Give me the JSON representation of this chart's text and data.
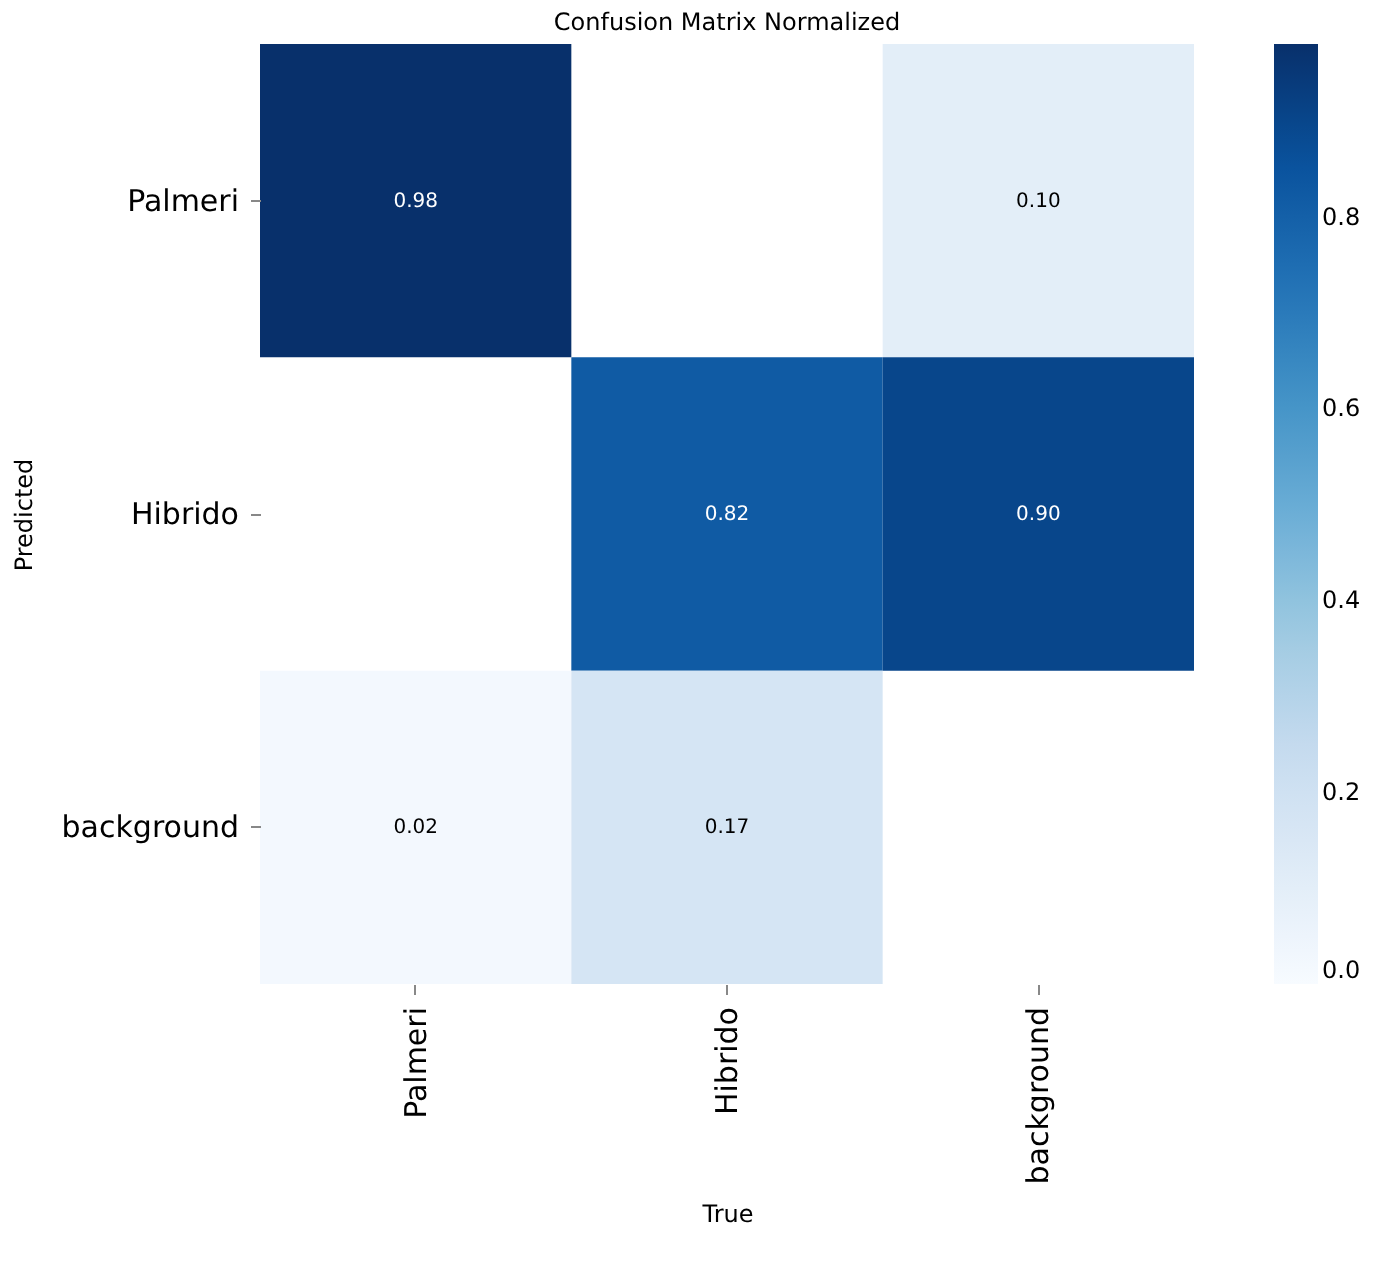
{
  "chart_data": {
    "type": "heatmap",
    "title": "Confusion Matrix Normalized",
    "xlabel": "True",
    "ylabel": "Predicted",
    "categories": [
      "Palmeri",
      "Hibrido",
      "background"
    ],
    "y_categories": [
      "Palmeri",
      "Hibrido",
      "background"
    ],
    "cells": [
      [
        0.98,
        null,
        0.1
      ],
      [
        null,
        0.82,
        0.9
      ],
      [
        0.02,
        0.17,
        null
      ]
    ],
    "cell_labels": [
      [
        "0.98",
        null,
        "0.10"
      ],
      [
        null,
        "0.82",
        "0.90"
      ],
      [
        "0.02",
        "0.17",
        null
      ]
    ],
    "clim": [
      0,
      0.98
    ],
    "cticks": [
      {
        "value": 0,
        "label": "0.0"
      },
      {
        "value": 0.2,
        "label": "0.2"
      },
      {
        "value": 0.4,
        "label": "0.4"
      },
      {
        "value": 0.6,
        "label": "0.6"
      },
      {
        "value": 0.8,
        "label": "0.8"
      }
    ],
    "grid": false
  }
}
